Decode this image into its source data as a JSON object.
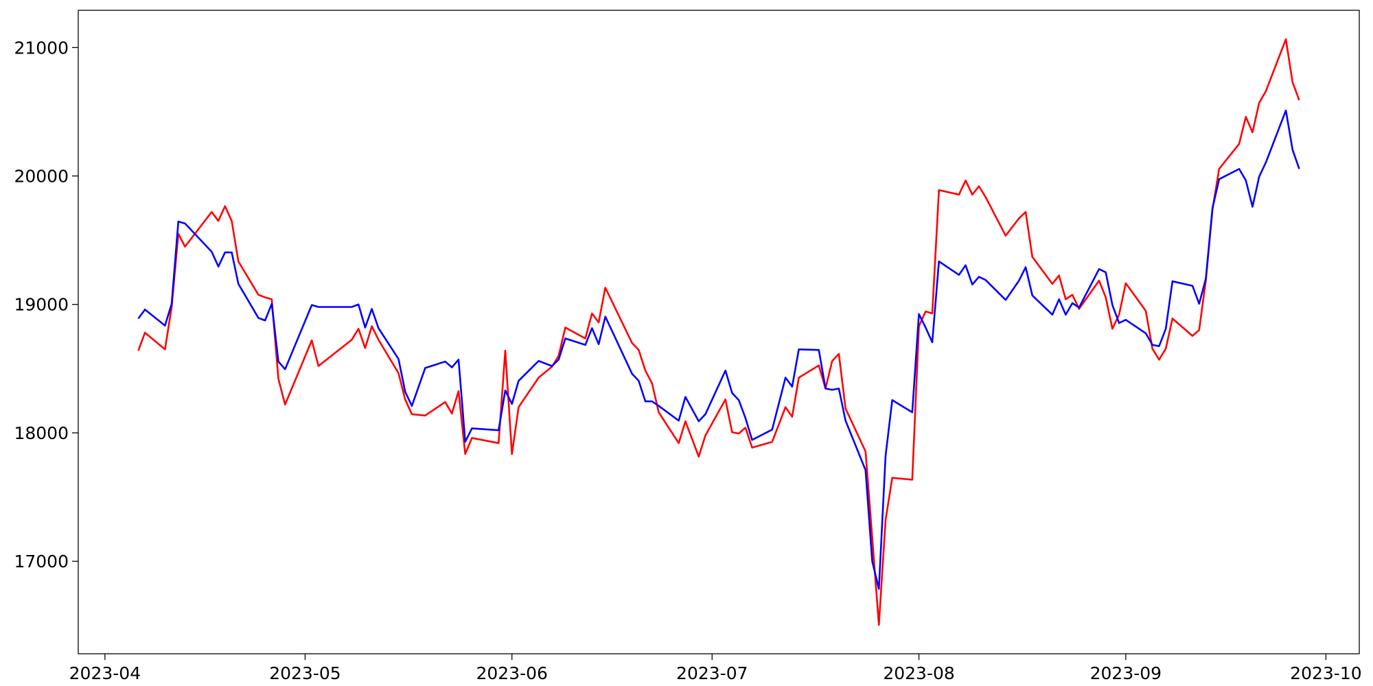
{
  "chart_data": {
    "type": "line",
    "x": [
      "2023-04-06",
      "2023-04-07",
      "2023-04-10",
      "2023-04-11",
      "2023-04-12",
      "2023-04-13",
      "2023-04-17",
      "2023-04-18",
      "2023-04-19",
      "2023-04-20",
      "2023-04-21",
      "2023-04-24",
      "2023-04-25",
      "2023-04-26",
      "2023-04-27",
      "2023-04-28",
      "2023-05-02",
      "2023-05-03",
      "2023-05-08",
      "2023-05-09",
      "2023-05-10",
      "2023-05-11",
      "2023-05-12",
      "2023-05-15",
      "2023-05-16",
      "2023-05-17",
      "2023-05-19",
      "2023-05-22",
      "2023-05-23",
      "2023-05-24",
      "2023-05-25",
      "2023-05-26",
      "2023-05-30",
      "2023-05-31",
      "2023-06-01",
      "2023-06-02",
      "2023-06-05",
      "2023-06-07",
      "2023-06-08",
      "2023-06-09",
      "2023-06-12",
      "2023-06-13",
      "2023-06-14",
      "2023-06-15",
      "2023-06-19",
      "2023-06-20",
      "2023-06-21",
      "2023-06-22",
      "2023-06-23",
      "2023-06-26",
      "2023-06-27",
      "2023-06-29",
      "2023-06-30",
      "2023-07-03",
      "2023-07-04",
      "2023-07-05",
      "2023-07-06",
      "2023-07-07",
      "2023-07-10",
      "2023-07-12",
      "2023-07-13",
      "2023-07-14",
      "2023-07-17",
      "2023-07-18",
      "2023-07-19",
      "2023-07-20",
      "2023-07-21",
      "2023-07-24",
      "2023-07-25",
      "2023-07-26",
      "2023-07-27",
      "2023-07-28",
      "2023-07-31",
      "2023-08-01",
      "2023-08-02",
      "2023-08-03",
      "2023-08-04",
      "2023-08-07",
      "2023-08-08",
      "2023-08-09",
      "2023-08-10",
      "2023-08-11",
      "2023-08-14",
      "2023-08-16",
      "2023-08-17",
      "2023-08-18",
      "2023-08-21",
      "2023-08-22",
      "2023-08-23",
      "2023-08-24",
      "2023-08-25",
      "2023-08-28",
      "2023-08-29",
      "2023-08-30",
      "2023-08-31",
      "2023-09-01",
      "2023-09-04",
      "2023-09-05",
      "2023-09-06",
      "2023-09-07",
      "2023-09-08",
      "2023-09-11",
      "2023-09-12",
      "2023-09-13",
      "2023-09-14",
      "2023-09-15",
      "2023-09-18",
      "2023-09-19",
      "2023-09-20",
      "2023-09-21",
      "2023-09-22",
      "2023-09-25",
      "2023-09-26",
      "2023-09-27"
    ],
    "series": [
      {
        "color": "red",
        "values": [
          18640,
          18780,
          18650,
          18980,
          19550,
          19450,
          19720,
          19650,
          19765,
          19650,
          19335,
          19075,
          19055,
          19040,
          18420,
          18220,
          18720,
          18520,
          18725,
          18810,
          18660,
          18830,
          18725,
          18465,
          18260,
          18145,
          18135,
          18240,
          18150,
          18325,
          17835,
          17960,
          17920,
          18640,
          17835,
          18200,
          18430,
          18515,
          18600,
          18820,
          18735,
          18930,
          18860,
          19130,
          18700,
          18645,
          18485,
          18385,
          18160,
          17920,
          18090,
          17815,
          17980,
          18260,
          18005,
          17995,
          18040,
          17885,
          17930,
          18200,
          18125,
          18430,
          18525,
          18345,
          18560,
          18615,
          18190,
          17855,
          17185,
          16505,
          17320,
          17650,
          17635,
          18830,
          18945,
          18930,
          19890,
          19855,
          19965,
          19855,
          19920,
          19835,
          19535,
          19670,
          19720,
          19370,
          19160,
          19225,
          19040,
          19075,
          18965,
          19185,
          19055,
          18810,
          18920,
          19165,
          18950,
          18655,
          18570,
          18655,
          18890,
          18755,
          18800,
          19185,
          19740,
          20055,
          20250,
          20460,
          20340,
          20570,
          20660,
          21065,
          20730,
          20590
        ]
      },
      {
        "color": "blue",
        "values": [
          18890,
          18960,
          18835,
          19005,
          19645,
          19630,
          19410,
          19295,
          19405,
          19405,
          19160,
          18895,
          18875,
          19005,
          18555,
          18495,
          18995,
          18980,
          18980,
          19000,
          18820,
          18965,
          18815,
          18575,
          18320,
          18210,
          18505,
          18555,
          18510,
          18570,
          17930,
          18035,
          18020,
          18330,
          18225,
          18405,
          18560,
          18520,
          18570,
          18735,
          18685,
          18815,
          18690,
          18905,
          18460,
          18405,
          18245,
          18245,
          18210,
          18095,
          18280,
          18090,
          18145,
          18485,
          18310,
          18255,
          18115,
          17945,
          18025,
          18430,
          18360,
          18650,
          18645,
          18345,
          18335,
          18345,
          18095,
          17710,
          17000,
          16785,
          17820,
          18255,
          18160,
          18925,
          18820,
          18705,
          19335,
          19230,
          19305,
          19155,
          19215,
          19190,
          19035,
          19185,
          19290,
          19070,
          18920,
          19040,
          18920,
          19010,
          18975,
          19275,
          19250,
          18995,
          18855,
          18880,
          18775,
          18685,
          18675,
          18810,
          19180,
          19145,
          19005,
          19200,
          19750,
          19975,
          20055,
          19965,
          19760,
          19995,
          20105,
          20510,
          20205,
          20055
        ]
      }
    ],
    "xlim": [
      "2023-03-28",
      "2023-10-06"
    ],
    "xticks": [
      {
        "value": "2023-04-01",
        "label": "2023-04"
      },
      {
        "value": "2023-05-01",
        "label": "2023-05"
      },
      {
        "value": "2023-06-01",
        "label": "2023-06"
      },
      {
        "value": "2023-07-01",
        "label": "2023-07"
      },
      {
        "value": "2023-08-01",
        "label": "2023-08"
      },
      {
        "value": "2023-09-01",
        "label": "2023-09"
      },
      {
        "value": "2023-10-01",
        "label": "2023-10"
      }
    ],
    "ylim": [
      16280,
      21290
    ],
    "yticks": [
      17000,
      18000,
      19000,
      20000,
      21000
    ]
  }
}
